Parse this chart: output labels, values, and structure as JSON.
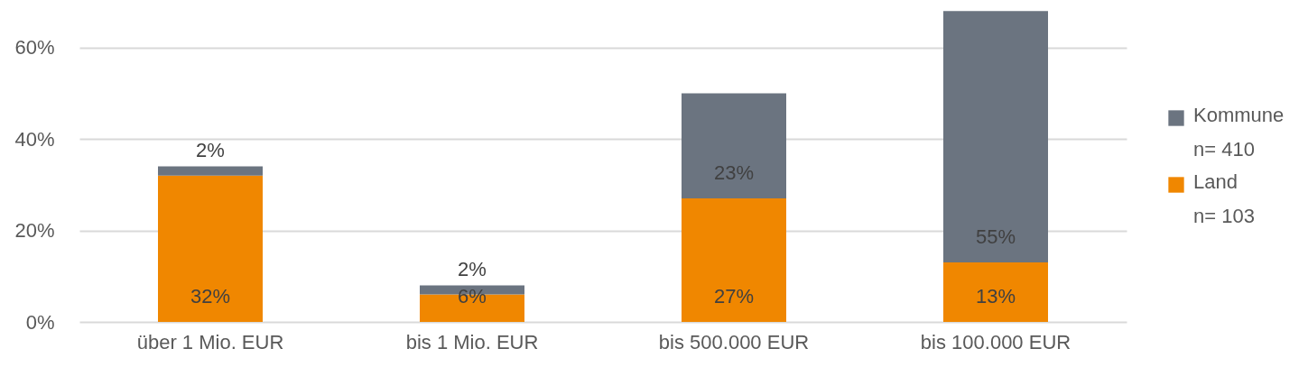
{
  "chart_data": {
    "type": "bar",
    "stacked": true,
    "categories": [
      "über 1 Mio. EUR",
      "bis 1 Mio. EUR",
      "bis 500.000 EUR",
      "bis 100.000 EUR"
    ],
    "series": [
      {
        "name": "Land\nn= 103",
        "color": "#f08700",
        "values": [
          32,
          6,
          27,
          13
        ],
        "value_labels": [
          "32%",
          "6%",
          "27%",
          "13%"
        ]
      },
      {
        "name": "Kommune\nn= 410",
        "color": "#6b7480",
        "values": [
          2,
          2,
          23,
          55
        ],
        "value_labels": [
          "2%",
          "2%",
          "23%",
          "55%"
        ]
      }
    ],
    "ylim": [
      0,
      70
    ],
    "yticks": [
      {
        "value": 0,
        "label": "0%"
      },
      {
        "value": 20,
        "label": "20%"
      },
      {
        "value": 40,
        "label": "40%"
      },
      {
        "value": 60,
        "label": "60%"
      }
    ],
    "grid": "y",
    "legend": "right"
  }
}
